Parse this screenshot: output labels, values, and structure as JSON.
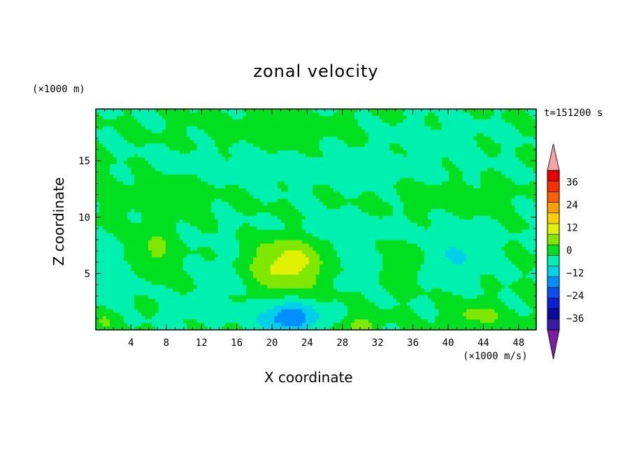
{
  "chart_data": {
    "type": "heatmap",
    "title": "zonal velocity",
    "xlabel": "X coordinate",
    "ylabel": "Z coordinate",
    "x_unit_label": "(×1000 m/s)",
    "y_unit_label": "(×1000 m)",
    "time_label": "t=151200 s",
    "xlim": [
      0,
      50
    ],
    "ylim": [
      0,
      19.6
    ],
    "x_ticks": [
      "4",
      "8",
      "12",
      "16",
      "20",
      "24",
      "28",
      "32",
      "36",
      "40",
      "44",
      "48"
    ],
    "y_ticks": [
      "5",
      "10",
      "15"
    ],
    "colorbar": {
      "ticks": [
        "36",
        "24",
        "12",
        "0",
        "−12",
        "−24",
        "−36"
      ],
      "levels": [
        -42,
        -36,
        -30,
        -24,
        -18,
        -12,
        -6,
        0,
        6,
        12,
        18,
        24,
        30,
        36,
        42
      ],
      "colors": [
        "#7b1fa2",
        "#3a1aa8",
        "#0a0aa0",
        "#0a20d8",
        "#0a50f0",
        "#0090ff",
        "#00d0e8",
        "#00f0b0",
        "#00e020",
        "#80e800",
        "#e0f000",
        "#f8d000",
        "#f8a000",
        "#f86000",
        "#f83000",
        "#e80000",
        "#f4a4a4"
      ]
    },
    "features": [
      {
        "x": 21.8,
        "z": 5.8,
        "u": 15,
        "sx": 4.2,
        "sz": 2.4
      },
      {
        "x": 6.6,
        "z": 6.9,
        "u": 8,
        "sx": 2.0,
        "sz": 2.2
      },
      {
        "x": 35.0,
        "z": 5.8,
        "u": 6,
        "sx": 1.8,
        "sz": 1.8
      },
      {
        "x": 43.2,
        "z": 1.2,
        "u": 8,
        "sx": 3.2,
        "sz": 1.2
      },
      {
        "x": 30.0,
        "z": 0.4,
        "u": 9,
        "sx": 2.0,
        "sz": 0.9
      },
      {
        "x": 1.2,
        "z": 0.8,
        "u": 6,
        "sx": 1.6,
        "sz": 0.9
      },
      {
        "x": 22.0,
        "z": 1.1,
        "u": -18,
        "sx": 3.3,
        "sz": 1.3
      },
      {
        "x": 40.8,
        "z": 6.2,
        "u": -6,
        "sx": 3.2,
        "sz": 2.0
      },
      {
        "x": 29.0,
        "z": 6.2,
        "u": -4,
        "sx": 2.4,
        "sz": 1.8
      },
      {
        "x": 2.5,
        "z": 4.5,
        "u": -4,
        "sx": 3.0,
        "sz": 2.0
      },
      {
        "x": 14.5,
        "z": 5.0,
        "u": -3,
        "sx": 2.0,
        "sz": 2.5
      },
      {
        "x": 12.0,
        "z": 1.8,
        "u": -4,
        "sx": 3.0,
        "sz": 1.0
      },
      {
        "x": 25.0,
        "z": 14.2,
        "u": -3,
        "sx": 15.0,
        "sz": 1.3
      },
      {
        "x": 10.0,
        "z": 15.1,
        "u": -2,
        "sx": 4.0,
        "sz": 0.8
      },
      {
        "x": 28.0,
        "z": 9.0,
        "u": -3,
        "sx": 10.0,
        "sz": 1.0
      },
      {
        "x": 38.0,
        "z": 17.0,
        "u": -2,
        "sx": 6.0,
        "sz": 1.5
      },
      {
        "x": 40.0,
        "z": 11.8,
        "u": 3,
        "sx": 6.0,
        "sz": 1.3
      },
      {
        "x": 6.0,
        "z": 12.0,
        "u": 2,
        "sx": 8.0,
        "sz": 2.0
      },
      {
        "x": 20.0,
        "z": 18.0,
        "u": 2,
        "sx": 10.0,
        "sz": 1.5
      }
    ]
  }
}
